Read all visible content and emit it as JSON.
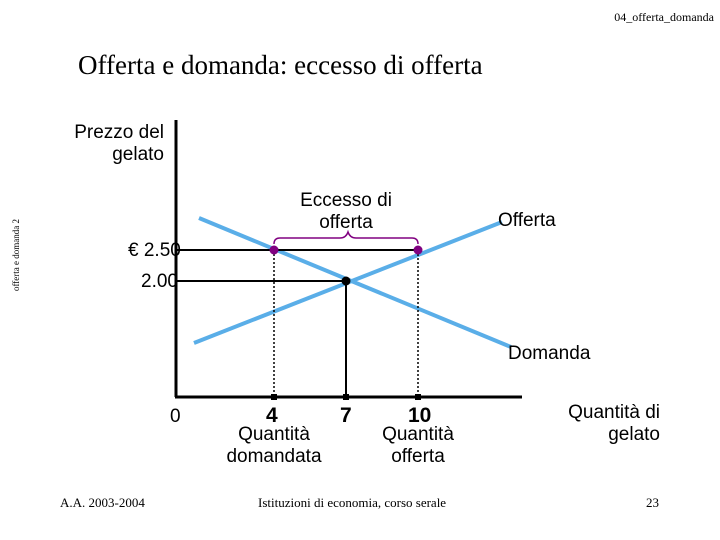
{
  "slide": {
    "file_code": "04_offerta_domanda",
    "title": "Offerta e domanda: eccesso di offerta",
    "side_label": "offerta e domanda 2",
    "footer_left": "A.A. 2003-2004",
    "footer_center": "Istituzioni di economia, corso serale",
    "page_number": "23"
  },
  "diagram": {
    "y_axis_label": "Prezzo del gelato",
    "x_axis_label": "Quantità di gelato",
    "supply_label": "Offerta",
    "demand_label": "Domanda",
    "excess_label": "Eccesso di offerta",
    "price_high": "€ 2.50",
    "price_eq": "2.00",
    "origin_label": "0",
    "q_demanded": "4",
    "q_equilibrium": "7",
    "q_supplied": "10",
    "q_demanded_caption": "Quantità domandata",
    "q_supplied_caption": "Quantità offerta",
    "colors": {
      "curve": "#5aaee8",
      "point_excess": "#800080",
      "point_eq": "#000000",
      "axis": "#000000"
    }
  }
}
